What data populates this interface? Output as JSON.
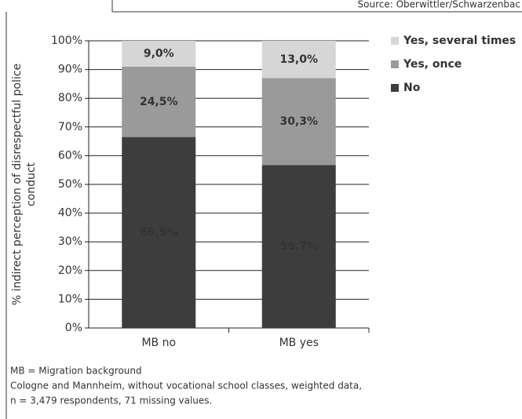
{
  "source": "Source: Oberwittler/Schwarzenbac",
  "chart_data": {
    "type": "stacked-bar",
    "ylabel": [
      "% indirect perception of disrespectful police",
      "conduct"
    ],
    "categories": [
      "MB no",
      "MB yes"
    ],
    "series": [
      {
        "name": "No",
        "color": "#3d3d3d",
        "values": [
          66.5,
          56.7
        ],
        "value_labels": [
          "66,5%",
          "56,7%"
        ]
      },
      {
        "name": "Yes, once",
        "color": "#9a9a9a",
        "values": [
          24.5,
          30.3
        ],
        "value_labels": [
          "24,5%",
          "30,3%"
        ]
      },
      {
        "name": "Yes, several times",
        "color": "#d6d6d6",
        "values": [
          9.0,
          13.0
        ],
        "value_labels": [
          "9,0%",
          "13,0%"
        ]
      }
    ],
    "ylim": [
      0,
      100
    ],
    "yticks": [
      {
        "value": 0,
        "label": "0%"
      },
      {
        "value": 10,
        "label": "10%"
      },
      {
        "value": 20,
        "label": "20%"
      },
      {
        "value": 30,
        "label": "30%"
      },
      {
        "value": 40,
        "label": "40%"
      },
      {
        "value": 50,
        "label": "50%"
      },
      {
        "value": 60,
        "label": "60%"
      },
      {
        "value": 70,
        "label": "70%"
      },
      {
        "value": 80,
        "label": "80%"
      },
      {
        "value": 90,
        "label": "90%"
      },
      {
        "value": 100,
        "label": "100%"
      }
    ],
    "grid": true,
    "legend": "top-right"
  },
  "notes": [
    "MB = Migration background",
    "Cologne and Mannheim, without vocational school classes, weighted data,",
    "n = 3,479 respondents, 71 missing values."
  ]
}
